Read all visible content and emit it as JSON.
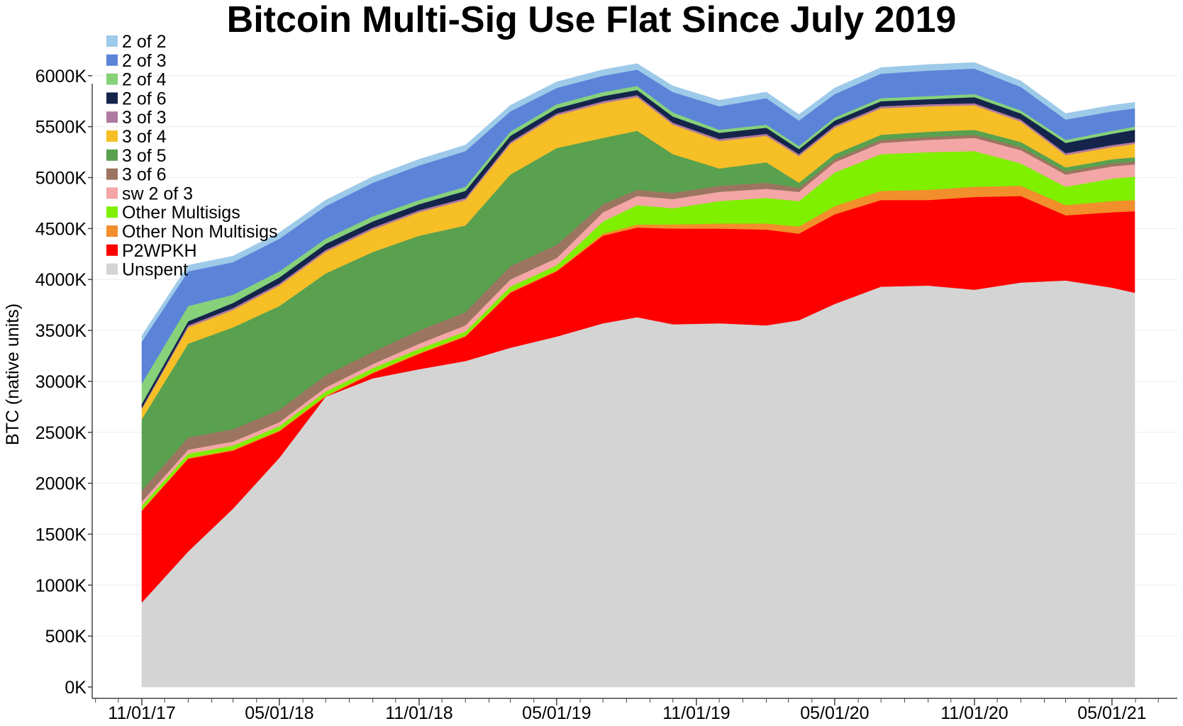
{
  "chart_data": {
    "type": "area",
    "title": "Bitcoin Multi-Sig Use Flat Since July 2019",
    "xlabel": "",
    "ylabel": "BTC (native units)",
    "ylim": [
      0,
      6000
    ],
    "y_ticks": [
      0,
      500,
      1000,
      1500,
      2000,
      2500,
      3000,
      3500,
      4000,
      4500,
      5000,
      5500,
      6000
    ],
    "y_tick_labels": [
      "0K",
      "500K",
      "1000K",
      "1500K",
      "2000K",
      "2500K",
      "3000K",
      "3500K",
      "4000K",
      "4500K",
      "5000K",
      "5500K",
      "6000K"
    ],
    "x_tick_labels": [
      "11/01/17",
      "05/01/18",
      "11/01/18",
      "05/01/19",
      "11/01/19",
      "05/01/20",
      "11/01/20",
      "05/01/21"
    ],
    "x": [
      "2017-11-01",
      "2018-01-01",
      "2018-03-01",
      "2018-05-01",
      "2018-07-01",
      "2018-09-01",
      "2018-11-01",
      "2019-01-01",
      "2019-03-01",
      "2019-05-01",
      "2019-07-01",
      "2019-08-15",
      "2019-10-01",
      "2019-12-01",
      "2020-02-01",
      "2020-03-15",
      "2020-05-01",
      "2020-07-01",
      "2020-09-01",
      "2020-11-01",
      "2021-01-01",
      "2021-03-01",
      "2021-05-01",
      "2021-05-31"
    ],
    "stacked": true,
    "grid": true,
    "legend_position": "top-left",
    "series": [
      {
        "name": "Unspent",
        "color": "#d4d4d4",
        "values": [
          830,
          1330,
          1750,
          2250,
          2850,
          3030,
          3120,
          3200,
          3330,
          3440,
          3570,
          3630,
          3560,
          3570,
          3550,
          3600,
          3760,
          3930,
          3940,
          3900,
          3970,
          3990,
          3920,
          3870
        ]
      },
      {
        "name": "P2WPKH",
        "color": "#ff0000",
        "values": [
          900,
          910,
          570,
          260,
          0,
          50,
          150,
          240,
          540,
          640,
          860,
          880,
          940,
          930,
          940,
          850,
          880,
          850,
          840,
          910,
          850,
          640,
          740,
          800
        ]
      },
      {
        "name": "Other Non Multisigs",
        "color": "#f28e2b",
        "values": [
          10,
          10,
          10,
          10,
          10,
          10,
          10,
          10,
          10,
          10,
          20,
          30,
          40,
          50,
          60,
          70,
          80,
          90,
          100,
          100,
          100,
          100,
          110,
          110
        ]
      },
      {
        "name": "Other Multisigs",
        "color": "#7ff000",
        "values": [
          40,
          40,
          40,
          40,
          40,
          40,
          40,
          40,
          50,
          50,
          120,
          190,
          160,
          220,
          250,
          250,
          330,
          360,
          370,
          350,
          220,
          180,
          220,
          230
        ]
      },
      {
        "name": "sw 2 of 3",
        "color": "#f4a6a6",
        "values": [
          40,
          40,
          40,
          40,
          40,
          40,
          50,
          60,
          70,
          70,
          90,
          90,
          90,
          90,
          90,
          90,
          100,
          110,
          120,
          130,
          130,
          120,
          120,
          120
        ]
      },
      {
        "name": "3 of 6",
        "color": "#9c7560",
        "values": [
          110,
          120,
          120,
          120,
          120,
          120,
          130,
          130,
          130,
          130,
          80,
          60,
          60,
          60,
          60,
          40,
          30,
          30,
          30,
          30,
          30,
          30,
          30,
          30
        ]
      },
      {
        "name": "3 of 5",
        "color": "#59a14f",
        "values": [
          700,
          920,
          1000,
          1020,
          1000,
          980,
          930,
          850,
          900,
          950,
          650,
          580,
          380,
          170,
          200,
          50,
          50,
          50,
          50,
          50,
          50,
          40,
          40,
          40
        ]
      },
      {
        "name": "3 of 4",
        "color": "#f6bf26",
        "values": [
          100,
          160,
          170,
          200,
          210,
          220,
          230,
          250,
          300,
          320,
          340,
          330,
          290,
          270,
          260,
          260,
          260,
          260,
          250,
          240,
          200,
          120,
          120,
          130
        ]
      },
      {
        "name": "3 of 3",
        "color": "#b07aa1",
        "values": [
          10,
          20,
          20,
          20,
          20,
          20,
          20,
          20,
          20,
          20,
          20,
          20,
          20,
          20,
          20,
          20,
          20,
          20,
          20,
          20,
          20,
          20,
          20,
          20
        ]
      },
      {
        "name": "2 of 6",
        "color": "#14244b",
        "values": [
          40,
          40,
          50,
          60,
          60,
          60,
          60,
          70,
          60,
          50,
          50,
          50,
          60,
          60,
          60,
          50,
          50,
          50,
          50,
          60,
          60,
          100,
          110,
          120
        ]
      },
      {
        "name": "2 of 4",
        "color": "#86d17a",
        "values": [
          200,
          150,
          80,
          60,
          50,
          50,
          40,
          40,
          40,
          40,
          40,
          40,
          40,
          30,
          30,
          30,
          30,
          30,
          30,
          30,
          30,
          30,
          30,
          30
        ]
      },
      {
        "name": "2 of 3",
        "color": "#5b84d8",
        "values": [
          410,
          340,
          320,
          320,
          320,
          330,
          340,
          350,
          200,
          160,
          160,
          160,
          200,
          230,
          260,
          250,
          230,
          240,
          250,
          250,
          230,
          200,
          190,
          180
        ]
      },
      {
        "name": "2 of 2",
        "color": "#9ecae9",
        "values": [
          60,
          60,
          60,
          60,
          60,
          60,
          60,
          60,
          60,
          60,
          60,
          60,
          60,
          60,
          60,
          60,
          60,
          60,
          60,
          60,
          60,
          60,
          60,
          60
        ]
      }
    ],
    "legend_order": [
      "2 of 2",
      "2 of 3",
      "2 of 4",
      "2 of 6",
      "3 of 3",
      "3 of 4",
      "3 of 5",
      "3 of 6",
      "sw 2 of 3",
      "Other Multisigs",
      "Other Non Multisigs",
      "P2WPKH",
      "Unspent"
    ]
  }
}
